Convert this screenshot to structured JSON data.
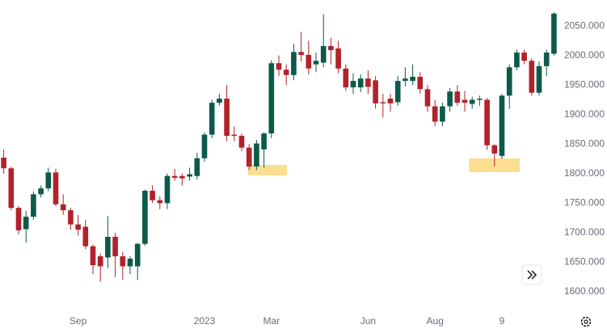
{
  "chart_data": {
    "type": "candlestick",
    "categories": [
      null,
      null,
      null,
      null,
      null,
      null,
      null,
      null,
      null,
      null,
      "Sep",
      null,
      null,
      null,
      null,
      null,
      null,
      null,
      null,
      null,
      null,
      null,
      null,
      null,
      null,
      null,
      null,
      "2023",
      null,
      null,
      null,
      null,
      null,
      null,
      null,
      null,
      "Mar",
      null,
      null,
      null,
      null,
      null,
      null,
      null,
      null,
      null,
      null,
      null,
      null,
      "Jun",
      null,
      null,
      null,
      null,
      null,
      null,
      null,
      null,
      "Aug",
      null,
      null,
      null,
      null,
      null,
      null,
      null,
      null,
      "9",
      null,
      null,
      null,
      null,
      null,
      null,
      null
    ],
    "open": [
      1827,
      1809,
      1742,
      1706,
      1727,
      1765,
      1775,
      1802,
      1748,
      1738,
      1714,
      1710,
      1677,
      1660,
      1658,
      1693,
      1660,
      1643,
      1643,
      1681,
      1771,
      1755,
      1750,
      1796,
      1796,
      1795,
      1796,
      1826,
      1866,
      1920,
      1927,
      1866,
      1864,
      1844,
      1812,
      1841,
      1868,
      1987,
      1976,
      1967,
      2006,
      2001,
      1985,
      1988,
      2016,
      2012,
      1978,
      1946,
      1946,
      1961,
      1958,
      1921,
      1927,
      1921,
      1957,
      1957,
      1964,
      1943,
      1914,
      1888,
      1914,
      1939,
      1925,
      1918,
      1925,
      1925,
      1848,
      1830,
      1932,
      1980,
      2005,
      1991,
      1937,
      1982,
      2003
    ],
    "high": [
      1841,
      1812,
      1745,
      1737,
      1770,
      1780,
      1810,
      1808,
      1765,
      1742,
      1730,
      1722,
      1680,
      1665,
      1728,
      1700,
      1668,
      1660,
      1683,
      1773,
      1780,
      1762,
      1800,
      1808,
      1800,
      1810,
      1835,
      1870,
      1925,
      1935,
      1950,
      1880,
      1868,
      1850,
      1857,
      1870,
      1992,
      2000,
      1985,
      2020,
      2040,
      2025,
      2005,
      2070,
      2030,
      2025,
      1985,
      1970,
      1968,
      1975,
      1965,
      1935,
      1935,
      1965,
      1980,
      1985,
      1972,
      1950,
      1925,
      1920,
      1945,
      1950,
      1940,
      1930,
      1932,
      1928,
      1850,
      1935,
      1985,
      2010,
      2010,
      1995,
      1990,
      2010,
      2073
    ],
    "low": [
      1800,
      1738,
      1697,
      1683,
      1722,
      1760,
      1770,
      1745,
      1730,
      1705,
      1695,
      1672,
      1630,
      1617,
      1640,
      1625,
      1620,
      1630,
      1620,
      1678,
      1750,
      1740,
      1740,
      1788,
      1780,
      1788,
      1790,
      1820,
      1860,
      1915,
      1855,
      1855,
      1838,
      1806,
      1806,
      1810,
      1860,
      1965,
      1950,
      1958,
      1990,
      1968,
      1972,
      1980,
      1985,
      1970,
      1940,
      1935,
      1938,
      1935,
      1910,
      1895,
      1905,
      1915,
      1948,
      1950,
      1935,
      1905,
      1880,
      1880,
      1905,
      1915,
      1905,
      1910,
      1915,
      1840,
      1812,
      1825,
      1910,
      1975,
      1985,
      1932,
      1932,
      1965,
      2000
    ],
    "close": [
      1809,
      1742,
      1704,
      1727,
      1765,
      1775,
      1802,
      1748,
      1738,
      1714,
      1705,
      1677,
      1645,
      1643,
      1693,
      1660,
      1643,
      1656,
      1681,
      1771,
      1755,
      1750,
      1796,
      1793,
      1792,
      1799,
      1826,
      1866,
      1920,
      1927,
      1864,
      1864,
      1844,
      1812,
      1851,
      1868,
      1987,
      1976,
      1967,
      2006,
      2001,
      1978,
      1991,
      2016,
      2009,
      1978,
      1946,
      1957,
      1961,
      1947,
      1919,
      1919,
      1919,
      1957,
      1961,
      1964,
      1943,
      1914,
      1888,
      1914,
      1939,
      1920,
      1920,
      1925,
      1927,
      1848,
      1834,
      1932,
      1980,
      2005,
      1991,
      1937,
      1982,
      2005,
      2071
    ],
    "up_color": "#0c5a49",
    "down_color": "#b2222b",
    "ylim": [
      1567,
      2094
    ],
    "yticks": [
      {
        "value": 1600,
        "label": "1600.000"
      },
      {
        "value": 1650,
        "label": "1650.000"
      },
      {
        "value": 1700,
        "label": "1700.000"
      },
      {
        "value": 1750,
        "label": "1750.000"
      },
      {
        "value": 1800,
        "label": "1800.000"
      },
      {
        "value": 1850,
        "label": "1850.000"
      },
      {
        "value": 1900,
        "label": "1900.000"
      },
      {
        "value": 1950,
        "label": "1950.000"
      },
      {
        "value": 2000,
        "label": "2000.000"
      },
      {
        "value": 2050,
        "label": "2050.000"
      }
    ],
    "grid": false
  }
}
